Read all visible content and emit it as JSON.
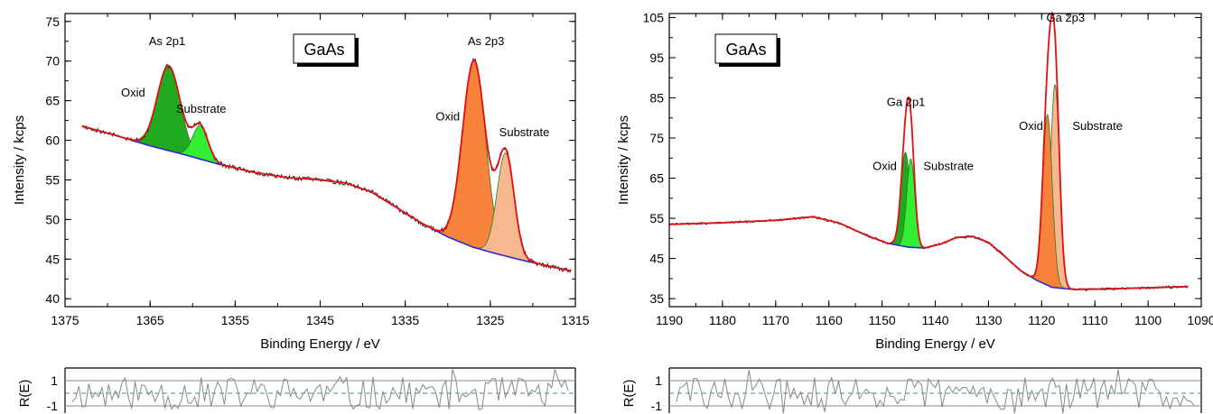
{
  "chart_data": [
    {
      "type": "area",
      "badge": "GaAs",
      "xlabel": "Binding Energy / eV",
      "ylabel": "Intensity / kcps",
      "xlim": [
        1375,
        1315
      ],
      "ylim": [
        39,
        76
      ],
      "x_reversed": true,
      "xticks": [
        1375,
        1365,
        1355,
        1345,
        1335,
        1325,
        1315
      ],
      "yticks": [
        40,
        45,
        50,
        55,
        60,
        65,
        70,
        75
      ],
      "background": [
        [
          1373,
          61.8
        ],
        [
          1369,
          60.6
        ],
        [
          1365,
          59.3
        ],
        [
          1361,
          58.2
        ],
        [
          1357,
          57.0
        ],
        [
          1353,
          56.0
        ],
        [
          1349,
          55.3
        ],
        [
          1345,
          55.0
        ],
        [
          1342,
          54.6
        ],
        [
          1339,
          53.5
        ],
        [
          1336,
          51.5
        ],
        [
          1333,
          49.5
        ],
        [
          1330,
          47.8
        ],
        [
          1327,
          46.5
        ],
        [
          1324,
          45.6
        ],
        [
          1321,
          44.8
        ],
        [
          1318,
          44.1
        ],
        [
          1315.5,
          43.5
        ]
      ],
      "peaks": [
        {
          "label": "Oxid",
          "center": 1362.8,
          "height": 10.7,
          "width": 1.35,
          "fill": "#1faa1f"
        },
        {
          "label": "Substrate",
          "center": 1359.1,
          "height": 4.2,
          "width": 0.9,
          "fill": "#33ee33"
        },
        {
          "label": "Oxid",
          "center": 1326.9,
          "height": 23.6,
          "width": 1.35,
          "fill": "#f7823a"
        },
        {
          "label": "Substrate",
          "center": 1323.2,
          "height": 13.0,
          "width": 1.0,
          "fill": "#f7b890"
        }
      ],
      "annotations": [
        {
          "text": "As 2p1",
          "x": 1363,
          "y": 72.0
        },
        {
          "text": "Oxid",
          "x": 1367,
          "y": 65.5
        },
        {
          "text": "Substrate",
          "x": 1359,
          "y": 63.5
        },
        {
          "text": "As 2p3",
          "x": 1325.5,
          "y": 72.0
        },
        {
          "text": "Oxid",
          "x": 1330,
          "y": 62.5
        },
        {
          "text": "Substrate",
          "x": 1321,
          "y": 60.5
        }
      ],
      "residual": {
        "ylabel": "R(E)",
        "yticks": [
          1,
          -1
        ],
        "seed": 11
      }
    },
    {
      "type": "area",
      "badge": "GaAs",
      "xlabel": "Binding Energy / eV",
      "ylabel": "Intensity / kcps",
      "xlim": [
        1190,
        1090
      ],
      "ylim": [
        33,
        106
      ],
      "x_reversed": true,
      "xticks": [
        1190,
        1180,
        1170,
        1160,
        1150,
        1140,
        1130,
        1120,
        1110,
        1100,
        1090
      ],
      "yticks": [
        35,
        45,
        55,
        65,
        75,
        85,
        95,
        105
      ],
      "background": [
        [
          1190,
          53.5
        ],
        [
          1180,
          53.9
        ],
        [
          1170,
          54.5
        ],
        [
          1163,
          55.4
        ],
        [
          1158,
          53.8
        ],
        [
          1153,
          50.8
        ],
        [
          1149,
          48.8
        ],
        [
          1145,
          47.8
        ],
        [
          1142,
          47.6
        ],
        [
          1139,
          48.6
        ],
        [
          1136,
          50.2
        ],
        [
          1133,
          50.5
        ],
        [
          1130,
          49.0
        ],
        [
          1127,
          45.6
        ],
        [
          1124,
          42.0
        ],
        [
          1121,
          39.6
        ],
        [
          1118,
          37.8
        ],
        [
          1114,
          37.3
        ],
        [
          1108,
          37.4
        ],
        [
          1100,
          37.7
        ],
        [
          1092.5,
          38.0
        ]
      ],
      "peaks": [
        {
          "label": "Oxid",
          "center": 1145.6,
          "height": 23.5,
          "width": 0.85,
          "fill": "#1faa1f"
        },
        {
          "label": "Substrate",
          "center": 1144.6,
          "height": 22.0,
          "width": 0.75,
          "fill": "#33ee33"
        },
        {
          "label": "Oxid",
          "center": 1118.9,
          "height": 42.5,
          "width": 0.9,
          "fill": "#f7823a"
        },
        {
          "label": "Substrate",
          "center": 1117.5,
          "height": 50.5,
          "width": 0.85,
          "fill": "#f7b890"
        }
      ],
      "annotations": [
        {
          "text": "Ga 2p1",
          "x": 1145.5,
          "y": 83.0
        },
        {
          "text": "Oxid",
          "x": 1149.5,
          "y": 67.0
        },
        {
          "text": "Substrate",
          "x": 1137.5,
          "y": 67.0
        },
        {
          "text": "Ga 2p3",
          "x": 1115.5,
          "y": 104.0
        },
        {
          "text": "Oxid",
          "x": 1122,
          "y": 77.0
        },
        {
          "text": "Substrate",
          "x": 1109.5,
          "y": 77.0
        }
      ],
      "residual": {
        "ylabel": "R(E)",
        "yticks": [
          1,
          -1
        ],
        "seed": 29
      }
    }
  ]
}
